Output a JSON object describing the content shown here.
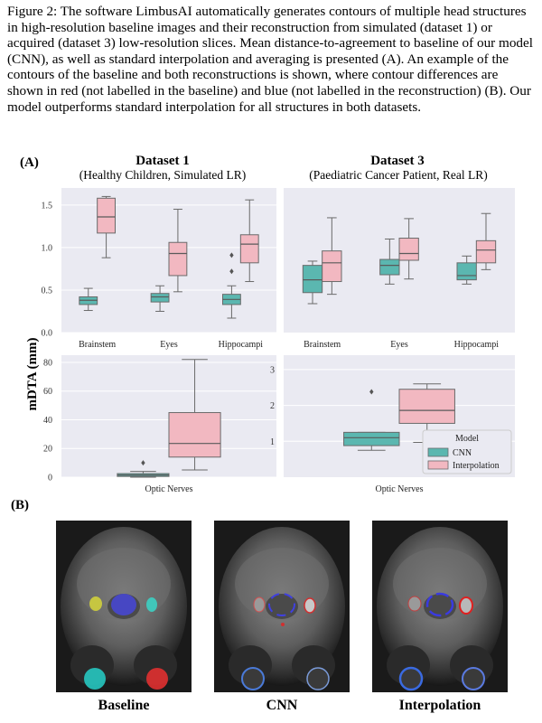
{
  "caption": "Figure 2: The software LimbusAI automatically generates contours of multiple head structures in high-resolution baseline images and their reconstruction from simulated (dataset 1) or acquired (dataset 3) low-resolution slices. Mean distance-to-agreement to baseline of our model (CNN), as well as standard interpolation and averaging is presented (A). An example of the contours of the baseline and both reconstructions is shown, where contour differences are shown in red (not labelled in the baseline) and blue (not labelled in the reconstruction) (B). Our model outperforms standard interpolation for all structures in both datasets.",
  "panel_a": "(A)",
  "panel_b": "(B)",
  "dataset1": {
    "title": "Dataset 1",
    "subtitle": "(Healthy Children, Simulated LR)"
  },
  "dataset3": {
    "title": "Dataset 3",
    "subtitle": "(Paediatric Cancer Patient, Real LR)"
  },
  "image_labels": [
    "Baseline",
    "CNN",
    "Interpolation"
  ],
  "colors": {
    "cnn": "#5bb7b0",
    "interp": "#f2b8c1",
    "panel_bg": "#eaeaf2",
    "median": "#5a5a5a"
  },
  "chart_data": [
    {
      "type": "box",
      "panel": "dataset1-top",
      "categories": [
        "Brainstem",
        "Eyes",
        "Hippocampi"
      ],
      "ylabel": "mDTA (mm)",
      "ylim": [
        0,
        1.7
      ],
      "yticks": [
        "0.0",
        "0.5",
        "1.0",
        "1.5"
      ],
      "grid": true,
      "series": [
        {
          "name": "CNN",
          "boxes": [
            {
              "min": 0.26,
              "q1": 0.33,
              "median": 0.38,
              "q3": 0.42,
              "max": 0.52,
              "outliers": []
            },
            {
              "min": 0.25,
              "q1": 0.36,
              "median": 0.42,
              "q3": 0.46,
              "max": 0.55,
              "outliers": []
            },
            {
              "min": 0.17,
              "q1": 0.33,
              "median": 0.39,
              "q3": 0.45,
              "max": 0.55,
              "outliers": [
                0.72,
                0.91
              ]
            }
          ]
        },
        {
          "name": "Interpolation",
          "boxes": [
            {
              "min": 0.88,
              "q1": 1.17,
              "median": 1.36,
              "q3": 1.58,
              "max": 1.6,
              "outliers": []
            },
            {
              "min": 0.48,
              "q1": 0.67,
              "median": 0.93,
              "q3": 1.06,
              "max": 1.45,
              "outliers": []
            },
            {
              "min": 0.6,
              "q1": 0.82,
              "median": 1.04,
              "q3": 1.15,
              "max": 1.56,
              "outliers": []
            }
          ]
        }
      ]
    },
    {
      "type": "box",
      "panel": "dataset3-top",
      "categories": [
        "Brainstem",
        "Eyes",
        "Hippocampi"
      ],
      "ylim": [
        0,
        1.7
      ],
      "grid": true,
      "series": [
        {
          "name": "CNN",
          "boxes": [
            {
              "min": 0.34,
              "q1": 0.47,
              "median": 0.62,
              "q3": 0.79,
              "max": 0.84,
              "outliers": []
            },
            {
              "min": 0.57,
              "q1": 0.68,
              "median": 0.79,
              "q3": 0.86,
              "max": 1.1,
              "outliers": []
            },
            {
              "min": 0.57,
              "q1": 0.62,
              "median": 0.67,
              "q3": 0.82,
              "max": 0.9,
              "outliers": []
            }
          ]
        },
        {
          "name": "Interpolation",
          "boxes": [
            {
              "min": 0.45,
              "q1": 0.6,
              "median": 0.82,
              "q3": 0.96,
              "max": 1.35,
              "outliers": []
            },
            {
              "min": 0.63,
              "q1": 0.85,
              "median": 0.93,
              "q3": 1.11,
              "max": 1.34,
              "outliers": []
            },
            {
              "min": 0.74,
              "q1": 0.82,
              "median": 0.97,
              "q3": 1.08,
              "max": 1.4,
              "outliers": []
            }
          ]
        }
      ]
    },
    {
      "type": "box",
      "panel": "dataset1-bottom",
      "categories": [
        "Optic Nerves"
      ],
      "ylim": [
        0,
        85
      ],
      "yticks": [
        "0",
        "20",
        "40",
        "60",
        "80"
      ],
      "grid": true,
      "series": [
        {
          "name": "CNN",
          "boxes": [
            {
              "min": 0,
              "q1": 0.5,
              "median": 1.5,
              "q3": 2.5,
              "max": 4,
              "outliers": [
                10
              ]
            }
          ]
        },
        {
          "name": "Interpolation",
          "boxes": [
            {
              "min": 5,
              "q1": 14,
              "median": 23.5,
              "q3": 45,
              "max": 82,
              "outliers": []
            }
          ]
        }
      ]
    },
    {
      "type": "box",
      "panel": "dataset3-bottom",
      "categories": [
        "Optic Nerves"
      ],
      "ylim": [
        0,
        3.4
      ],
      "yticks": [
        "1",
        "2",
        "3"
      ],
      "grid": true,
      "legend": {
        "title": "Model",
        "entries": [
          "CNN",
          "Interpolation"
        ],
        "placement": "bottom-right"
      },
      "series": [
        {
          "name": "CNN",
          "boxes": [
            {
              "min": 0.75,
              "q1": 0.88,
              "median": 1.1,
              "q3": 1.25,
              "max": 1.25,
              "outliers": [
                2.38
              ]
            }
          ]
        },
        {
          "name": "Interpolation",
          "boxes": [
            {
              "min": 0.97,
              "q1": 1.5,
              "median": 1.86,
              "q3": 2.45,
              "max": 2.6,
              "outliers": []
            }
          ]
        }
      ]
    }
  ]
}
